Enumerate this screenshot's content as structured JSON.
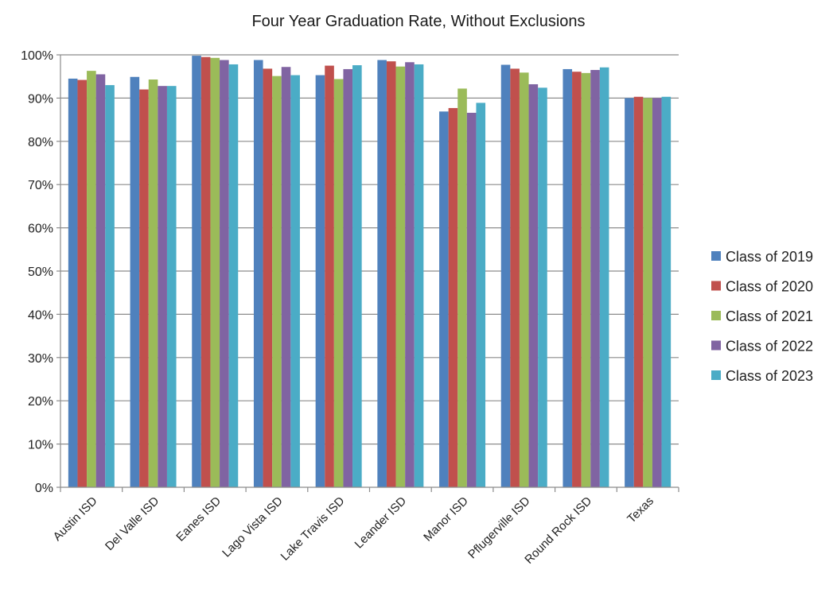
{
  "chart_data": {
    "type": "bar",
    "title": "Four Year Graduation Rate, Without Exclusions",
    "xlabel": "",
    "ylabel": "",
    "ylim": [
      0,
      100
    ],
    "y_ticks": [
      "0%",
      "10%",
      "20%",
      "30%",
      "40%",
      "50%",
      "60%",
      "70%",
      "80%",
      "90%",
      "100%"
    ],
    "grid": true,
    "legend_position": "right",
    "categories": [
      "Austin ISD",
      "Del Valle ISD",
      "Eanes ISD",
      "Lago Vista ISD",
      "Lake Travis ISD",
      "Leander ISD",
      "Manor ISD",
      "Pflugerville ISD",
      "Round Rock ISD",
      "Texas"
    ],
    "series": [
      {
        "name": "Class of 2019",
        "color": "#4F81BD",
        "values": [
          94.5,
          94.9,
          99.8,
          98.8,
          95.3,
          98.8,
          86.9,
          97.7,
          96.7,
          90.0
        ]
      },
      {
        "name": "Class of 2020",
        "color": "#C0504D",
        "values": [
          94.2,
          92.0,
          99.5,
          96.8,
          97.5,
          98.5,
          87.7,
          96.8,
          96.1,
          90.3
        ]
      },
      {
        "name": "Class of 2021",
        "color": "#9BBB59",
        "values": [
          96.3,
          94.3,
          99.3,
          95.1,
          94.4,
          97.3,
          92.2,
          95.9,
          95.8,
          90.0
        ]
      },
      {
        "name": "Class of 2022",
        "color": "#8064A2",
        "values": [
          95.5,
          92.8,
          98.8,
          97.2,
          96.7,
          98.3,
          86.6,
          93.2,
          96.5,
          90.0
        ]
      },
      {
        "name": "Class of 2023",
        "color": "#4BACC6",
        "values": [
          93.0,
          92.8,
          97.8,
          95.3,
          97.6,
          97.8,
          88.9,
          92.4,
          97.1,
          90.3
        ]
      }
    ]
  }
}
